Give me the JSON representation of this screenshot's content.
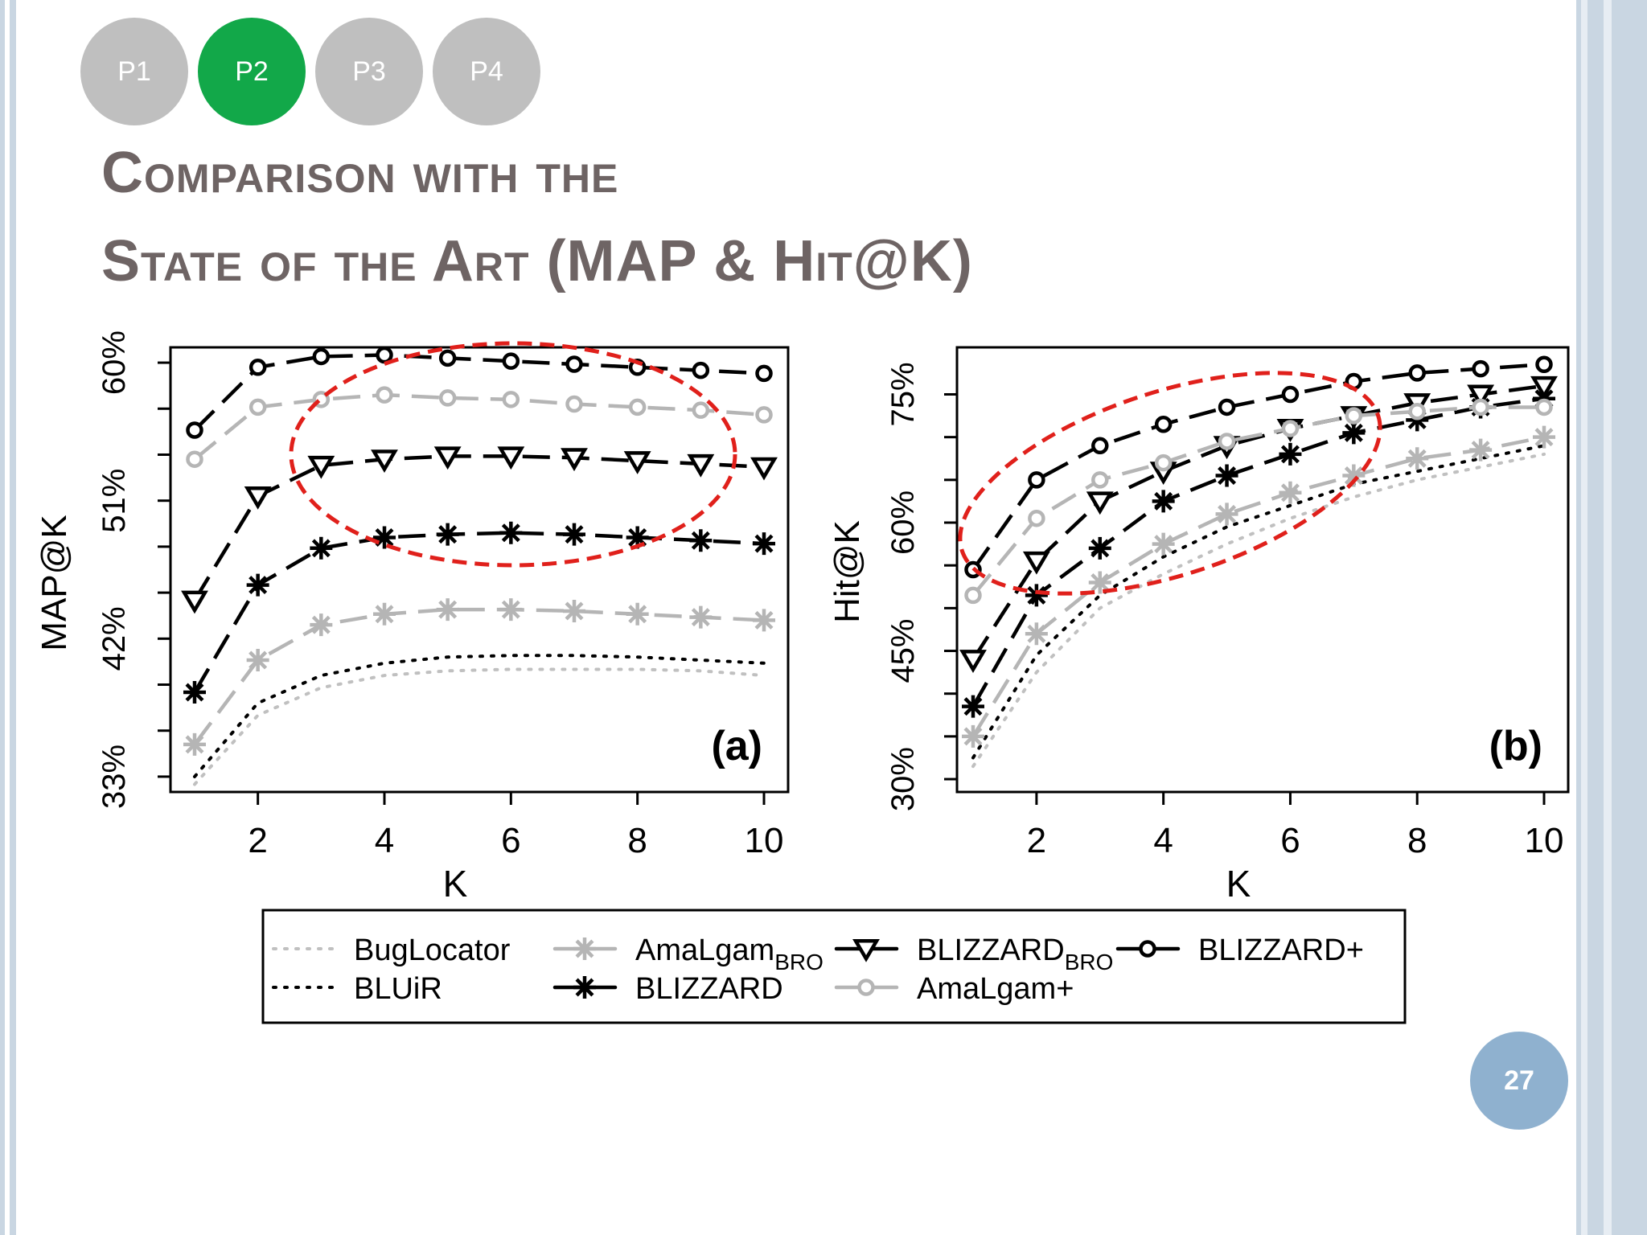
{
  "nav": {
    "items": [
      "P1",
      "P2",
      "P3",
      "P4"
    ],
    "active_index": 1,
    "active_color": "#12a849",
    "inactive_color": "#bfbfbf"
  },
  "title": {
    "line1": "Comparison with the",
    "line2": "State of the Art (MAP & Hit@K)"
  },
  "slide_number": "27",
  "chart_data": [
    {
      "type": "line",
      "panel_label": "(a)",
      "xlabel": "K",
      "ylabel": "MAP@K",
      "x": [
        1,
        2,
        3,
        4,
        5,
        6,
        7,
        8,
        9,
        10
      ],
      "xticks": [
        "2",
        "4",
        "6",
        "8",
        "10"
      ],
      "xlim": [
        1,
        10
      ],
      "yticks": [
        "33%",
        "42%",
        "51%",
        "60%"
      ],
      "ylim": [
        32,
        61
      ],
      "grid": false,
      "series": [
        {
          "name": "BugLocator",
          "style": "dotted",
          "color": "#c0c0c0",
          "marker": "none",
          "values": [
            32.5,
            37.0,
            38.8,
            39.6,
            39.9,
            40.0,
            40.0,
            40.0,
            39.9,
            39.6
          ]
        },
        {
          "name": "BLUiR",
          "style": "dotted",
          "color": "#000000",
          "marker": "none",
          "values": [
            33.0,
            37.8,
            39.6,
            40.4,
            40.8,
            40.9,
            40.9,
            40.8,
            40.6,
            40.4
          ]
        },
        {
          "name": "AmaLgam_BRO",
          "style": "dashed",
          "color": "#b5b5b5",
          "marker": "asterisk",
          "values": [
            35.1,
            40.6,
            42.9,
            43.6,
            43.9,
            43.9,
            43.8,
            43.6,
            43.4,
            43.2
          ]
        },
        {
          "name": "BLIZZARD",
          "style": "dashed",
          "color": "#000000",
          "marker": "asterisk",
          "values": [
            38.5,
            45.5,
            47.9,
            48.6,
            48.8,
            48.9,
            48.8,
            48.6,
            48.4,
            48.2
          ]
        },
        {
          "name": "BLIZZARD_BRO",
          "style": "dashed",
          "color": "#000000",
          "marker": "triangle",
          "values": [
            44.5,
            51.3,
            53.3,
            53.7,
            53.9,
            53.9,
            53.8,
            53.6,
            53.4,
            53.2
          ]
        },
        {
          "name": "AmaLgam+",
          "style": "dashed",
          "color": "#b5b5b5",
          "marker": "circle",
          "values": [
            53.7,
            57.1,
            57.6,
            57.9,
            57.7,
            57.6,
            57.3,
            57.1,
            56.9,
            56.6
          ]
        },
        {
          "name": "BLIZZARD+",
          "style": "dashed",
          "color": "#000000",
          "marker": "circle",
          "values": [
            55.6,
            59.7,
            60.4,
            60.5,
            60.3,
            60.1,
            59.9,
            59.7,
            59.5,
            59.3
          ]
        }
      ]
    },
    {
      "type": "line",
      "panel_label": "(b)",
      "xlabel": "K",
      "ylabel": "Hit@K",
      "x": [
        1,
        2,
        3,
        4,
        5,
        6,
        7,
        8,
        9,
        10
      ],
      "xticks": [
        "2",
        "4",
        "6",
        "8",
        "10"
      ],
      "xlim": [
        1,
        10
      ],
      "yticks": [
        "30%",
        "45%",
        "60%",
        "75%"
      ],
      "ylim": [
        28.5,
        80.5
      ],
      "grid": false,
      "series": [
        {
          "name": "BugLocator",
          "style": "dotted",
          "color": "#c0c0c0",
          "marker": "none",
          "values": [
            31.5,
            42.5,
            50.0,
            54.0,
            57.5,
            60.5,
            63.0,
            65.0,
            66.5,
            68.0
          ]
        },
        {
          "name": "BLUiR",
          "style": "dotted",
          "color": "#000000",
          "marker": "none",
          "values": [
            32.5,
            44.5,
            51.5,
            56.0,
            59.5,
            62.0,
            64.5,
            66.0,
            67.5,
            69.0
          ]
        },
        {
          "name": "AmaLgam_BRO",
          "style": "dashed",
          "color": "#b5b5b5",
          "marker": "asterisk",
          "values": [
            35.0,
            47.0,
            53.0,
            57.5,
            61.0,
            63.5,
            65.5,
            67.5,
            68.5,
            70.0
          ]
        },
        {
          "name": "BLIZZARD",
          "style": "dashed",
          "color": "#000000",
          "marker": "asterisk",
          "values": [
            38.5,
            51.5,
            57.0,
            62.5,
            65.5,
            68.0,
            70.5,
            72.0,
            73.5,
            74.5
          ]
        },
        {
          "name": "BLIZZARD_BRO",
          "style": "dashed",
          "color": "#000000",
          "marker": "triangle",
          "values": [
            44.0,
            55.5,
            62.5,
            66.0,
            69.0,
            71.0,
            72.5,
            74.0,
            75.0,
            76.0
          ]
        },
        {
          "name": "AmaLgam+",
          "style": "dashed",
          "color": "#b5b5b5",
          "marker": "circle",
          "values": [
            51.5,
            60.5,
            65.0,
            67.0,
            69.5,
            71.0,
            72.5,
            73.0,
            73.5,
            73.5
          ]
        },
        {
          "name": "BLIZZARD+",
          "style": "dashed",
          "color": "#000000",
          "marker": "circle",
          "values": [
            54.5,
            65.0,
            69.0,
            71.5,
            73.5,
            75.0,
            76.5,
            77.5,
            78.0,
            78.5
          ]
        }
      ]
    }
  ],
  "legend": {
    "placement": "bottom",
    "rows": [
      [
        {
          "series": "BugLocator",
          "label": "BugLocator"
        },
        {
          "series": "AmaLgam_BRO",
          "label": "AmaLgam",
          "sub": "BRO"
        },
        {
          "series": "BLIZZARD_BRO",
          "label": "BLIZZARD",
          "sub": "BRO"
        },
        {
          "series": "BLIZZARD+",
          "label": "BLIZZARD+"
        }
      ],
      [
        {
          "series": "BLUiR",
          "label": "BLUiR"
        },
        {
          "series": "BLIZZARD",
          "label": "BLIZZARD"
        },
        {
          "series": "AmaLgam+",
          "label": "AmaLgam+"
        }
      ]
    ]
  },
  "highlight_color": "#e0201b"
}
